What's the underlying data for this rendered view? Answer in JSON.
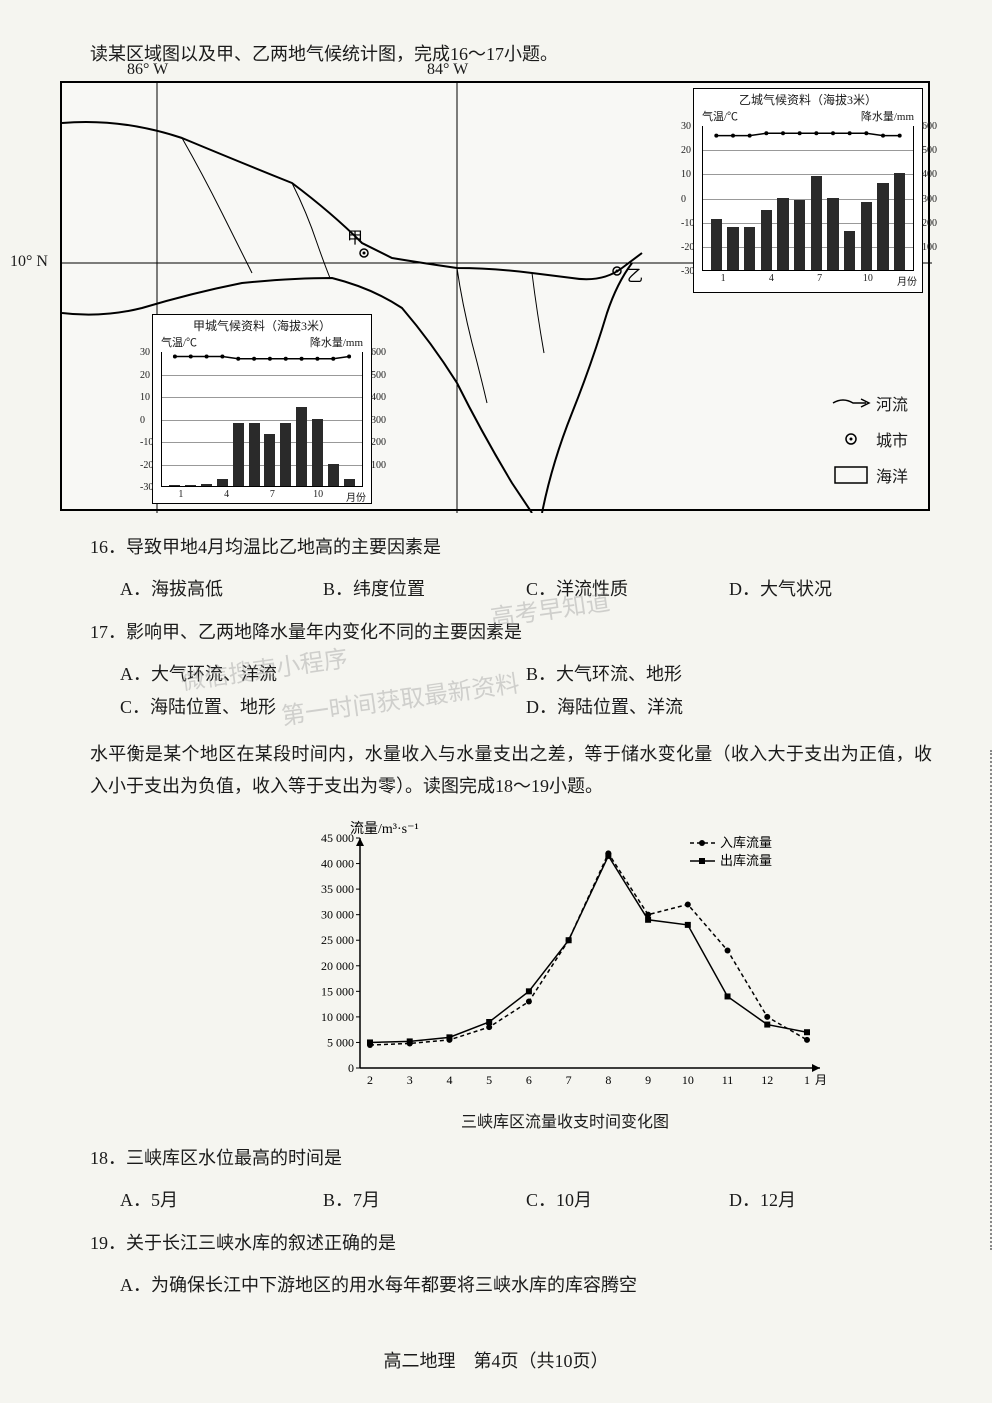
{
  "intro_text_1": "读某区域图以及甲、乙两地气候统计图，完成16～17小题。",
  "map": {
    "lon_86w": "86° W",
    "lon_84w": "84° W",
    "lat_10n": "10° N",
    "city_jia": "甲",
    "city_yi": "乙",
    "legend": {
      "river": "河流",
      "city": "城市",
      "ocean": "海洋"
    }
  },
  "chart_jia": {
    "title": "甲城气候资料（海拔3米）",
    "temp_label": "气温/℃",
    "precip_label": "降水量/mm",
    "month_label": "月份",
    "temp_ticks": [
      30,
      20,
      10,
      0,
      -10,
      -20,
      -30
    ],
    "precip_ticks": [
      600,
      500,
      400,
      300,
      200,
      100
    ],
    "x_months": [
      1,
      4,
      7,
      10
    ],
    "temp_values": [
      28,
      28,
      28,
      28,
      27,
      27,
      27,
      27,
      27,
      27,
      27,
      28
    ],
    "precip_values": [
      5,
      5,
      10,
      30,
      280,
      280,
      230,
      280,
      350,
      300,
      100,
      30
    ],
    "temp_color": "#000000",
    "bar_color": "#2a2a2a",
    "grid_color": "#999999"
  },
  "chart_yi": {
    "title": "乙城气候资料（海拔3米）",
    "temp_label": "气温/℃",
    "precip_label": "降水量/mm",
    "month_label": "月份",
    "temp_ticks": [
      30,
      20,
      10,
      0,
      -10,
      -20,
      -30
    ],
    "precip_ticks": [
      600,
      500,
      400,
      300,
      200,
      100
    ],
    "x_months": [
      1,
      4,
      7,
      10
    ],
    "temp_values": [
      26,
      26,
      26,
      27,
      27,
      27,
      27,
      27,
      27,
      27,
      26,
      26
    ],
    "precip_values": [
      210,
      180,
      180,
      250,
      300,
      290,
      390,
      300,
      160,
      280,
      360,
      400
    ],
    "temp_color": "#000000",
    "bar_color": "#2a2a2a",
    "grid_color": "#999999"
  },
  "q16": {
    "stem": "16．导致甲地4月均温比乙地高的主要因素是",
    "opt_a": "A．海拔高低",
    "opt_b": "B．纬度位置",
    "opt_c": "C．洋流性质",
    "opt_d": "D．大气状况"
  },
  "q17": {
    "stem": "17．影响甲、乙两地降水量年内变化不同的主要因素是",
    "opt_a": "A．大气环流、洋流",
    "opt_b": "B．大气环流、地形",
    "opt_c": "C．海陆位置、地形",
    "opt_d": "D．海陆位置、洋流"
  },
  "intro_text_2": "水平衡是某个地区在某段时间内，水量收入与水量支出之差，等于储水变化量（收入大于支出为正值，收入小于支出为负值，收入等于支出为零）。读图完成18～19小题。",
  "flow_chart": {
    "type": "line",
    "y_label": "流量/m³·s⁻¹",
    "y_ticks": [
      45000,
      40000,
      35000,
      30000,
      25000,
      20000,
      15000,
      10000,
      5000,
      0
    ],
    "y_tick_labels": [
      "45 000",
      "40 000",
      "35 000",
      "30 000",
      "25 000",
      "20 000",
      "15 000",
      "10 000",
      "5 000",
      "0"
    ],
    "x_months": [
      2,
      3,
      4,
      5,
      6,
      7,
      8,
      9,
      10,
      11,
      12,
      1
    ],
    "legend_in": "入库流量",
    "legend_out": "出库流量",
    "series_in": {
      "values": [
        4500,
        4800,
        5500,
        8000,
        13000,
        25000,
        42000,
        30000,
        32000,
        23000,
        10000,
        5500
      ],
      "color": "#000000",
      "marker": "circle",
      "dash": "4 3"
    },
    "series_out": {
      "values": [
        5000,
        5200,
        6000,
        9000,
        15000,
        25000,
        41500,
        29000,
        28000,
        14000,
        8500,
        7000
      ],
      "color": "#000000",
      "marker": "square",
      "dash": "none"
    },
    "title": "三峡库区流量收支时间变化图",
    "ylim": [
      0,
      45000
    ],
    "background_color": "#ffffff"
  },
  "q18": {
    "stem": "18．三峡库区水位最高的时间是",
    "opt_a": "A．5月",
    "opt_b": "B．7月",
    "opt_c": "C．10月",
    "opt_d": "D．12月"
  },
  "q19": {
    "stem": "19．关于长江三峡水库的叙述正确的是",
    "opt_a": "A．为确保长江中下游地区的用水每年都要将三峡水库的库容腾空"
  },
  "footer": "高二地理　第4页（共10页）",
  "watermarks": {
    "wm1": "高考早知道",
    "wm2": "微信搜索小程序",
    "wm3": "第一时间获取最新资料"
  }
}
